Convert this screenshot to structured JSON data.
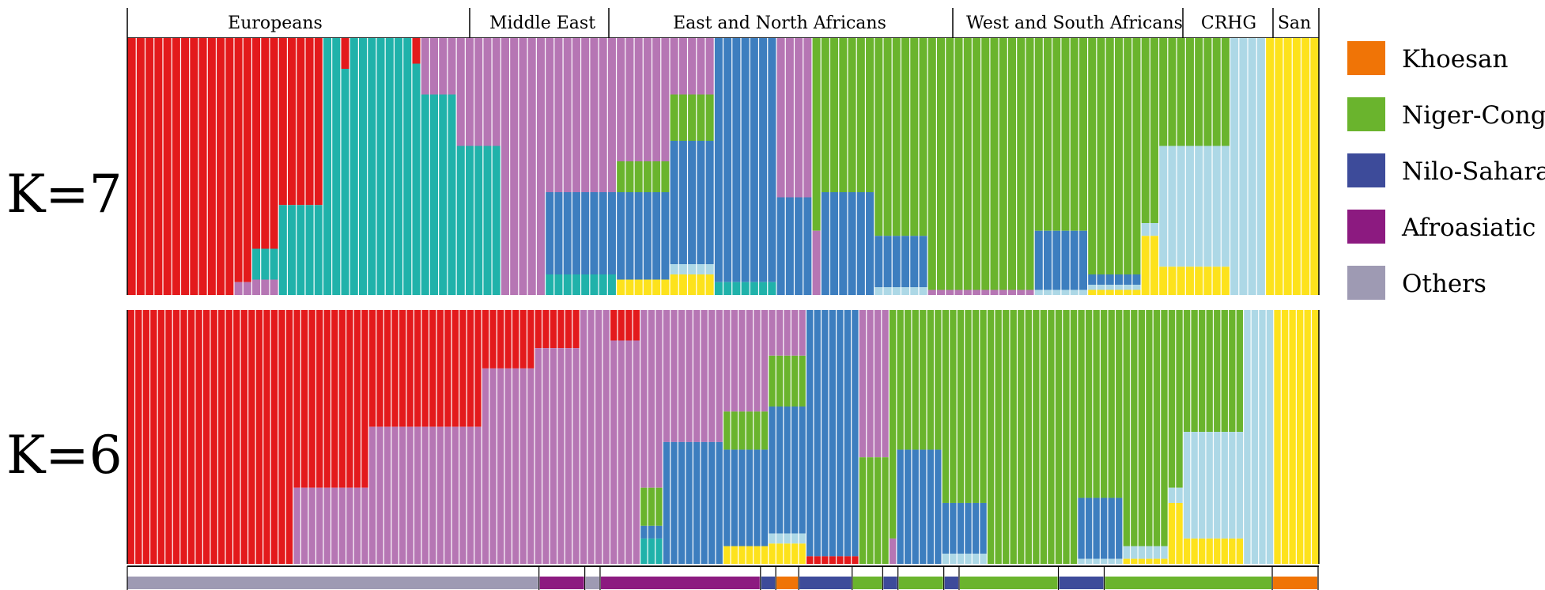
{
  "chart_data": {
    "type": "bar",
    "stacked": true,
    "normalized": true,
    "regions": [
      "Europeans",
      "Middle East",
      "East and North Africans",
      "West and South Africans",
      "CRHG",
      "San"
    ],
    "panels": [
      {
        "label": "K=7",
        "profiles": [
          {
            "n": 12,
            "c": [
              [
                "#e31a1c",
                1
              ]
            ]
          },
          {
            "n": 2,
            "c": [
              [
                "#e31a1c",
                0.95
              ],
              [
                "#b676b4",
                0.05
              ]
            ]
          },
          {
            "n": 3,
            "c": [
              [
                "#e31a1c",
                0.82
              ],
              [
                "#20b2aa",
                0.12
              ],
              [
                "#b676b4",
                0.06
              ]
            ]
          },
          {
            "n": 5,
            "c": [
              [
                "#e31a1c",
                0.65
              ],
              [
                "#20b2aa",
                0.35
              ]
            ]
          },
          {
            "n": 2,
            "c": [
              [
                "#20b2aa",
                1
              ]
            ]
          },
          {
            "n": 1,
            "c": [
              [
                "#e31a1c",
                0.12
              ],
              [
                "#20b2aa",
                0.88
              ]
            ]
          },
          {
            "n": 7,
            "c": [
              [
                "#20b2aa",
                1
              ]
            ]
          },
          {
            "n": 1,
            "c": [
              [
                "#e31a1c",
                0.1
              ],
              [
                "#20b2aa",
                0.9
              ]
            ]
          },
          {
            "n": 4,
            "c": [
              [
                "#b676b4",
                0.22
              ],
              [
                "#20b2aa",
                0.78
              ]
            ]
          },
          {
            "n": 5,
            "c": [
              [
                "#b676b4",
                0.42
              ],
              [
                "#20b2aa",
                0.58
              ]
            ]
          },
          {
            "n": 5,
            "c": [
              [
                "#b676b4",
                1
              ]
            ]
          },
          {
            "n": 8,
            "c": [
              [
                "#b676b4",
                0.6
              ],
              [
                "#3d7ebf",
                0.32
              ],
              [
                "#20b2aa",
                0.08
              ]
            ]
          },
          {
            "n": 6,
            "c": [
              [
                "#b676b4",
                0.48
              ],
              [
                "#6ab42d",
                0.12
              ],
              [
                "#3d7ebf",
                0.34
              ],
              [
                "#fde21c",
                0.06
              ]
            ]
          },
          {
            "n": 5,
            "c": [
              [
                "#b676b4",
                0.22
              ],
              [
                "#6ab42d",
                0.18
              ],
              [
                "#3d7ebf",
                0.48
              ],
              [
                "#add8e6",
                0.04
              ],
              [
                "#fde21c",
                0.08
              ]
            ]
          },
          {
            "n": 7,
            "c": [
              [
                "#3d7ebf",
                0.95
              ],
              [
                "#20b2aa",
                0.05
              ]
            ]
          },
          {
            "n": 4,
            "c": [
              [
                "#b676b4",
                0.62
              ],
              [
                "#3d7ebf",
                0.38
              ]
            ]
          },
          {
            "n": 1,
            "c": [
              [
                "#6ab42d",
                0.75
              ],
              [
                "#b676b4",
                0.25
              ]
            ]
          },
          {
            "n": 6,
            "c": [
              [
                "#6ab42d",
                0.6
              ],
              [
                "#3d7ebf",
                0.4
              ]
            ]
          },
          {
            "n": 6,
            "c": [
              [
                "#6ab42d",
                0.77
              ],
              [
                "#3d7ebf",
                0.2
              ],
              [
                "#add8e6",
                0.03
              ]
            ]
          },
          {
            "n": 12,
            "c": [
              [
                "#6ab42d",
                0.98
              ],
              [
                "#b676b4",
                0.02
              ]
            ]
          },
          {
            "n": 6,
            "c": [
              [
                "#6ab42d",
                0.75
              ],
              [
                "#3d7ebf",
                0.23
              ],
              [
                "#add8e6",
                0.02
              ]
            ]
          },
          {
            "n": 6,
            "c": [
              [
                "#6ab42d",
                0.92
              ],
              [
                "#3d7ebf",
                0.04
              ],
              [
                "#add8e6",
                0.02
              ],
              [
                "#fde21c",
                0.02
              ]
            ]
          },
          {
            "n": 2,
            "c": [
              [
                "#6ab42d",
                0.72
              ],
              [
                "#add8e6",
                0.05
              ],
              [
                "#fde21c",
                0.23
              ]
            ]
          },
          {
            "n": 8,
            "c": [
              [
                "#6ab42d",
                0.42
              ],
              [
                "#add8e6",
                0.47
              ],
              [
                "#fde21c",
                0.11
              ]
            ]
          },
          {
            "n": 4,
            "c": [
              [
                "#add8e6",
                1
              ]
            ]
          },
          {
            "n": 6,
            "c": [
              [
                "#fde21c",
                1
              ]
            ]
          }
        ]
      },
      {
        "label": "K=6",
        "profiles": [
          {
            "n": 22,
            "c": [
              [
                "#e31a1c",
                1
              ]
            ]
          },
          {
            "n": 10,
            "c": [
              [
                "#e31a1c",
                0.7
              ],
              [
                "#b676b4",
                0.3
              ]
            ]
          },
          {
            "n": 15,
            "c": [
              [
                "#e31a1c",
                0.46
              ],
              [
                "#b676b4",
                0.54
              ]
            ]
          },
          {
            "n": 7,
            "c": [
              [
                "#e31a1c",
                0.23
              ],
              [
                "#b676b4",
                0.77
              ]
            ]
          },
          {
            "n": 6,
            "c": [
              [
                "#e31a1c",
                0.15
              ],
              [
                "#b676b4",
                0.85
              ]
            ]
          },
          {
            "n": 4,
            "c": [
              [
                "#b676b4",
                1
              ]
            ]
          },
          {
            "n": 4,
            "c": [
              [
                "#e31a1c",
                0.12
              ],
              [
                "#b676b4",
                0.88
              ]
            ]
          },
          {
            "n": 3,
            "c": [
              [
                "#b676b4",
                0.7
              ],
              [
                "#6ab42d",
                0.15
              ],
              [
                "#3d7ebf",
                0.05
              ],
              [
                "#20b2aa",
                0.1
              ]
            ]
          },
          {
            "n": 8,
            "c": [
              [
                "#b676b4",
                0.52
              ],
              [
                "#3d7ebf",
                0.48
              ]
            ]
          },
          {
            "n": 6,
            "c": [
              [
                "#b676b4",
                0.4
              ],
              [
                "#6ab42d",
                0.15
              ],
              [
                "#3d7ebf",
                0.38
              ],
              [
                "#fde21c",
                0.07
              ]
            ]
          },
          {
            "n": 5,
            "c": [
              [
                "#b676b4",
                0.18
              ],
              [
                "#6ab42d",
                0.2
              ],
              [
                "#3d7ebf",
                0.5
              ],
              [
                "#add8e6",
                0.04
              ],
              [
                "#fde21c",
                0.08
              ]
            ]
          },
          {
            "n": 7,
            "c": [
              [
                "#3d7ebf",
                0.97
              ],
              [
                "#e31a1c",
                0.03
              ]
            ]
          },
          {
            "n": 4,
            "c": [
              [
                "#b676b4",
                0.58
              ],
              [
                "#6ab42d",
                0.42
              ]
            ]
          },
          {
            "n": 1,
            "c": [
              [
                "#6ab42d",
                0.9
              ],
              [
                "#b676b4",
                0.1
              ]
            ]
          },
          {
            "n": 6,
            "c": [
              [
                "#6ab42d",
                0.55
              ],
              [
                "#3d7ebf",
                0.45
              ]
            ]
          },
          {
            "n": 6,
            "c": [
              [
                "#6ab42d",
                0.76
              ],
              [
                "#3d7ebf",
                0.2
              ],
              [
                "#add8e6",
                0.04
              ]
            ]
          },
          {
            "n": 12,
            "c": [
              [
                "#6ab42d",
                1
              ]
            ]
          },
          {
            "n": 6,
            "c": [
              [
                "#6ab42d",
                0.74
              ],
              [
                "#3d7ebf",
                0.24
              ],
              [
                "#add8e6",
                0.02
              ]
            ]
          },
          {
            "n": 6,
            "c": [
              [
                "#6ab42d",
                0.93
              ],
              [
                "#add8e6",
                0.05
              ],
              [
                "#fde21c",
                0.02
              ]
            ]
          },
          {
            "n": 2,
            "c": [
              [
                "#6ab42d",
                0.7
              ],
              [
                "#add8e6",
                0.06
              ],
              [
                "#fde21c",
                0.24
              ]
            ]
          },
          {
            "n": 8,
            "c": [
              [
                "#6ab42d",
                0.48
              ],
              [
                "#add8e6",
                0.42
              ],
              [
                "#fde21c",
                0.1
              ]
            ]
          },
          {
            "n": 4,
            "c": [
              [
                "#add8e6",
                1
              ]
            ]
          },
          {
            "n": 6,
            "c": [
              [
                "#fde21c",
                1
              ]
            ]
          }
        ]
      }
    ],
    "language_bar": [
      {
        "group": "Others",
        "n": 54
      },
      {
        "group": "Afroasiatic",
        "n": 6
      },
      {
        "group": "Others",
        "n": 2
      },
      {
        "group": "Afroasiatic",
        "n": 21
      },
      {
        "group": "Nilo-Saharan",
        "n": 2
      },
      {
        "group": "Khoesan",
        "n": 3
      },
      {
        "group": "Nilo-Saharan",
        "n": 7
      },
      {
        "group": "Niger-Congo",
        "n": 4
      },
      {
        "group": "Nilo-Saharan",
        "n": 2
      },
      {
        "group": "Niger-Congo",
        "n": 6
      },
      {
        "group": "Nilo-Saharan",
        "n": 2
      },
      {
        "group": "Niger-Congo",
        "n": 13
      },
      {
        "group": "Nilo-Saharan",
        "n": 6
      },
      {
        "group": "Niger-Congo",
        "n": 22
      },
      {
        "group": "Khoesan",
        "n": 6
      }
    ],
    "legend": [
      {
        "label": "Khoesan",
        "color": "#f07406"
      },
      {
        "label": "Niger-Congo",
        "color": "#6ab42d"
      },
      {
        "label": "Nilo-Saharan",
        "color": "#3d4b9a"
      },
      {
        "label": "Afroasiatic",
        "color": "#8c1a80"
      },
      {
        "label": "Others",
        "color": "#9e9ab3"
      }
    ]
  }
}
